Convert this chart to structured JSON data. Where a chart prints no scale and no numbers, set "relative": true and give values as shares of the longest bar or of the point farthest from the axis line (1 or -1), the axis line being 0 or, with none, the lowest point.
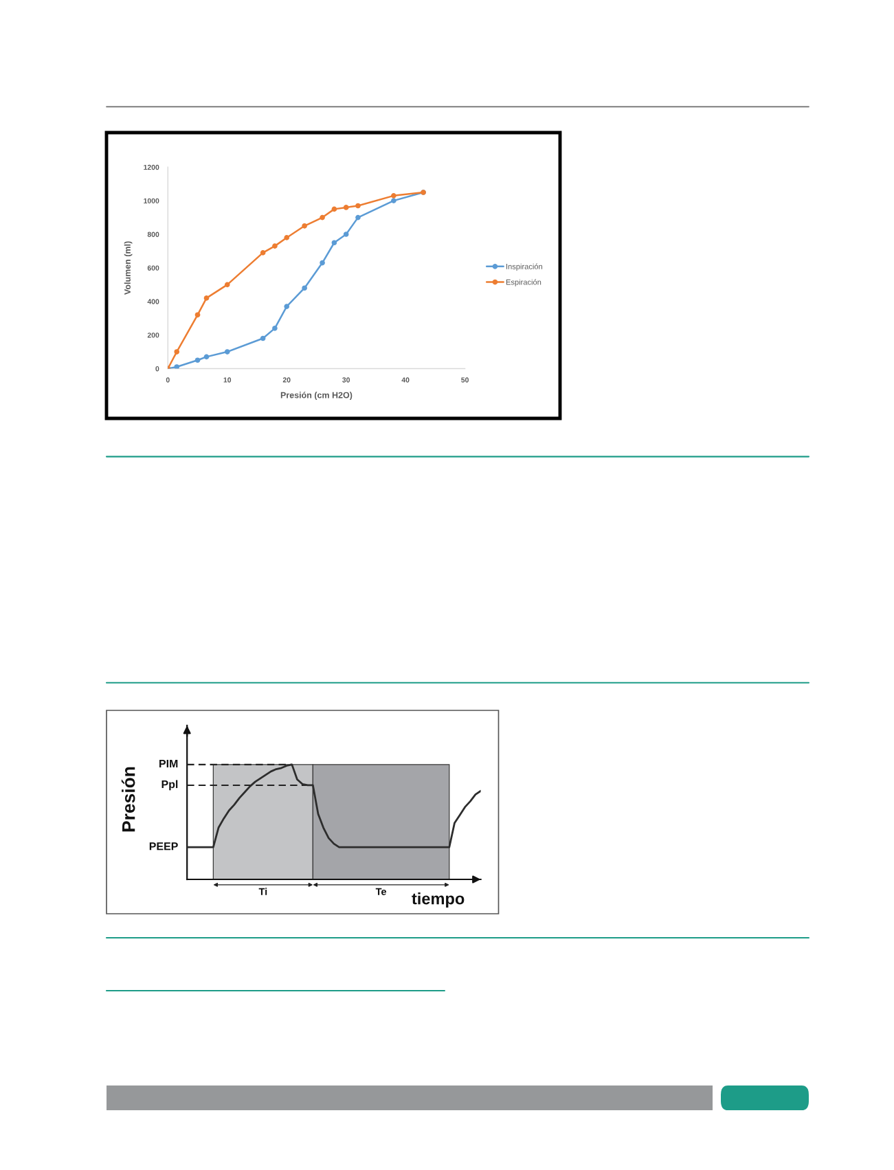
{
  "chart_data": [
    {
      "type": "line",
      "xlabel": "Presión (cm H2O)",
      "ylabel": "Volumen (ml)",
      "xlim": [
        0,
        50
      ],
      "xticks": [
        0,
        10,
        20,
        30,
        40,
        50
      ],
      "ylim": [
        0,
        1200
      ],
      "yticks": [
        0,
        200,
        400,
        600,
        800,
        1000,
        1200
      ],
      "legend": "right",
      "marker": "circle",
      "series": [
        {
          "name": "Inspiración",
          "color": "#5b9bd5",
          "x": [
            0,
            1.5,
            5,
            6.5,
            10,
            16,
            18,
            20,
            23,
            26,
            28,
            30,
            32,
            38,
            43
          ],
          "values": [
            0,
            10,
            50,
            70,
            100,
            180,
            240,
            370,
            480,
            630,
            750,
            800,
            900,
            1000,
            1050
          ]
        },
        {
          "name": "Espiración",
          "color": "#ed7d31",
          "x": [
            0,
            1.5,
            5,
            6.5,
            10,
            16,
            18,
            20,
            23,
            26,
            28,
            30,
            32,
            38,
            43
          ],
          "values": [
            0,
            100,
            320,
            420,
            500,
            690,
            730,
            780,
            850,
            900,
            950,
            960,
            970,
            1030,
            1050
          ]
        }
      ]
    },
    {
      "type": "line",
      "relative": true,
      "xlabel": "tiempo",
      "ylabel": "Presión",
      "categories": [
        null,
        null,
        null,
        null,
        null,
        null,
        null,
        null,
        null,
        null,
        null,
        null,
        null,
        null,
        null,
        null,
        null,
        null,
        null,
        null,
        null,
        null,
        null,
        null,
        null,
        null,
        null,
        null,
        null,
        null,
        null,
        null,
        null,
        null,
        null,
        null,
        null,
        null,
        null,
        null,
        null,
        null,
        null,
        null,
        null,
        null,
        null,
        null,
        null,
        null,
        null,
        null,
        null,
        null,
        null,
        null,
        null
      ],
      "series": [
        {
          "color": "#2d2d2d",
          "values": [
            0.28,
            0.28,
            0.28,
            0.28,
            0.28,
            0.28,
            0.45,
            0.53,
            0.6,
            0.65,
            0.71,
            0.76,
            0.81,
            0.85,
            0.88,
            0.91,
            0.94,
            0.96,
            0.97,
            0.99,
            1.0,
            0.87,
            0.83,
            0.82,
            0.82,
            0.57,
            0.45,
            0.36,
            0.31,
            0.28,
            0.28,
            0.28,
            0.28,
            0.28,
            0.28,
            0.28,
            0.28,
            0.28,
            0.28,
            0.28,
            0.28,
            0.28,
            0.28,
            0.28,
            0.28,
            0.28,
            0.28,
            0.28,
            0.28,
            0.28,
            0.28,
            0.49,
            0.56,
            0.63,
            0.68,
            0.74,
            0.77
          ]
        }
      ],
      "ref_lines": [
        {
          "axis": "y",
          "value": 1.0,
          "label": "PIM",
          "line_style": "dashed",
          "color": "#222222"
        },
        {
          "axis": "y",
          "value": 0.82,
          "label": "Ppl",
          "line_style": "dashed",
          "color": "#222222"
        }
      ],
      "annotations": [
        "Ti",
        "Te",
        "PEEP"
      ]
    }
  ]
}
